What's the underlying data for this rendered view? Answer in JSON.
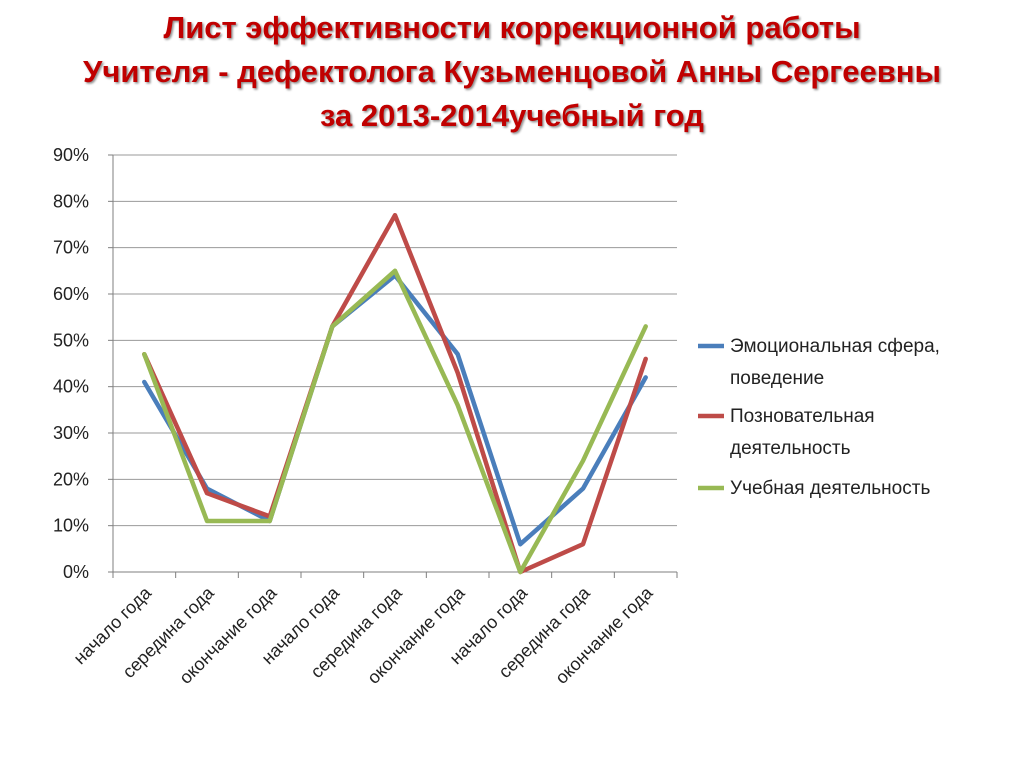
{
  "title": {
    "line1": "Лист эффективности коррекционной работы",
    "line2": "Учителя - дефектолога Кузьменцовой Анны Сергеевны",
    "line3": "за 2013-2014учебный год"
  },
  "colors": {
    "title": "#c00000",
    "grid": "#9a9a9a",
    "axis": "#7f7f7f"
  },
  "chart_data": {
    "type": "line",
    "categories": [
      "начало года",
      "середина года",
      "окончание года",
      "начало года",
      "середина года",
      "окончание года",
      "начало года",
      "середина года",
      "окончание года"
    ],
    "yticks": [
      "0%",
      "10%",
      "20%",
      "30%",
      "40%",
      "50%",
      "60%",
      "70%",
      "80%",
      "90%"
    ],
    "ylim": [
      0,
      0.9
    ],
    "grid": true,
    "legend_position": "right",
    "series": [
      {
        "name_lines": [
          "Эмоциональная сфера,",
          "поведение"
        ],
        "color": "#4a7ebb",
        "values": [
          0.41,
          0.18,
          0.11,
          0.53,
          0.64,
          0.47,
          0.06,
          0.18,
          0.42
        ]
      },
      {
        "name_lines": [
          "Позновательная",
          "деятельность"
        ],
        "color": "#be4b48",
        "values": [
          0.47,
          0.17,
          0.12,
          0.53,
          0.77,
          0.43,
          0.0,
          0.06,
          0.46
        ]
      },
      {
        "name_lines": [
          "Учебная деятельность"
        ],
        "color": "#98b954",
        "values": [
          0.47,
          0.11,
          0.11,
          0.53,
          0.65,
          0.36,
          0.0,
          0.24,
          0.53
        ]
      }
    ]
  }
}
